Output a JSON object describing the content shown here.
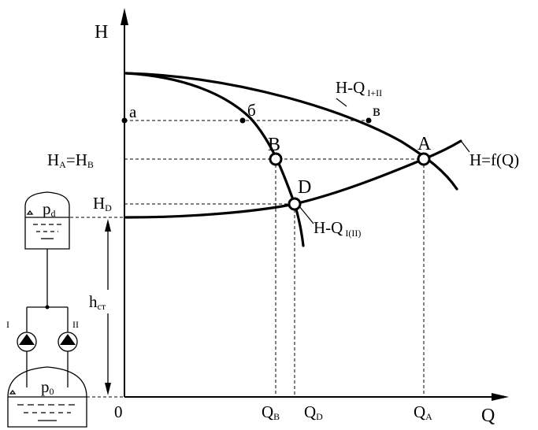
{
  "axes": {
    "y_label": "H",
    "x_label": "Q",
    "origin": "0"
  },
  "curves": {
    "combined": {
      "main": "H-Q",
      "sub": "I+II"
    },
    "single": {
      "main": "H-Q",
      "sub": "I(II)"
    },
    "system": "H=f(Q)"
  },
  "points": {
    "a": "а",
    "b": "б",
    "v": "в",
    "A": "A",
    "B": "B",
    "D": "D"
  },
  "y_ticks": {
    "hab": {
      "h1": "H",
      "s1": "A",
      "eq": "=",
      "h2": "H",
      "s2": "B"
    },
    "hd": {
      "h": "H",
      "s": "D"
    }
  },
  "x_ticks": {
    "qb": {
      "q": "Q",
      "s": "B"
    },
    "qd": {
      "q": "Q",
      "s": "D"
    },
    "qa": {
      "q": "Q",
      "s": "A"
    }
  },
  "static_head": {
    "h": "h",
    "s": "ст"
  },
  "tanks": {
    "upper": {
      "p": "p",
      "s": "d"
    },
    "lower": {
      "p": "p",
      "s": "0"
    }
  },
  "pumps": {
    "left": "I",
    "right": "II"
  }
}
